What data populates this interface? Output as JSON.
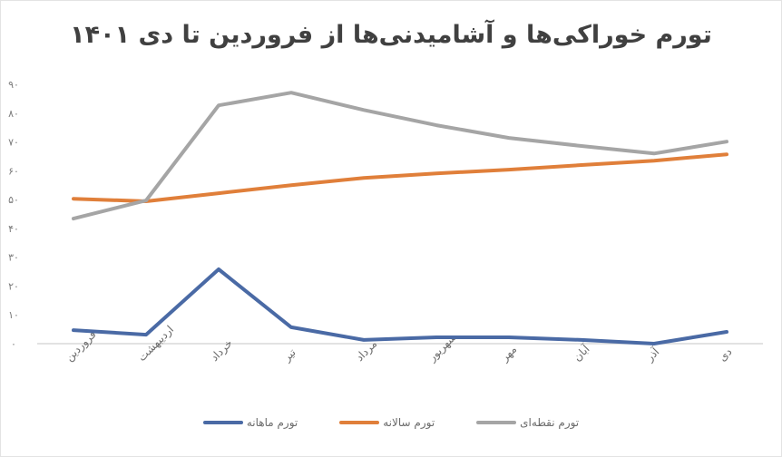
{
  "chart_data": {
    "type": "line",
    "title": "تورم خوراکی‌ها و آشامیدنی‌ها از فروردین تا دی ۱۴۰۱",
    "xlabel": "",
    "ylabel": "",
    "categories": [
      "فروردین",
      "اردیبهشت",
      "خرداد",
      "تیر",
      "مرداد",
      "شهریور",
      "مهر",
      "آبان",
      "آذر",
      "دی"
    ],
    "ylim": [
      0,
      90
    ],
    "yticks": [
      0,
      10,
      20,
      30,
      40,
      50,
      60,
      70,
      80,
      90
    ],
    "ytick_labels": [
      "۰",
      "۱۰",
      "۲۰",
      "۳۰",
      "۴۰",
      "۵۰",
      "۶۰",
      "۷۰",
      "۸۰",
      "۹۰"
    ],
    "grid": false,
    "legend_position": "bottom",
    "series": [
      {
        "name": "تورم ماهانه",
        "color": "#4a6aa5",
        "values": [
          4.7,
          3.1,
          25.8,
          5.7,
          1.3,
          2.2,
          2.2,
          1.3,
          0.0,
          4.1
        ]
      },
      {
        "name": "تورم سالانه",
        "color": "#e07f3a",
        "values": [
          50.3,
          49.4,
          52.2,
          55.0,
          57.5,
          59.1,
          60.4,
          62.0,
          63.5,
          65.7
        ]
      },
      {
        "name": "تورم نقطه‌ای",
        "color": "#a5a5a5",
        "values": [
          43.4,
          49.7,
          82.7,
          87.1,
          81.1,
          75.8,
          71.4,
          68.6,
          66.0,
          70.1
        ]
      }
    ]
  },
  "legend": {
    "items": [
      {
        "label": "تورم ماهانه",
        "color": "#4a6aa5"
      },
      {
        "label": "تورم سالانه",
        "color": "#e07f3a"
      },
      {
        "label": "تورم نقطه‌ای",
        "color": "#a5a5a5"
      }
    ]
  },
  "axis": {
    "baseline_color": "#d9d9d9"
  }
}
